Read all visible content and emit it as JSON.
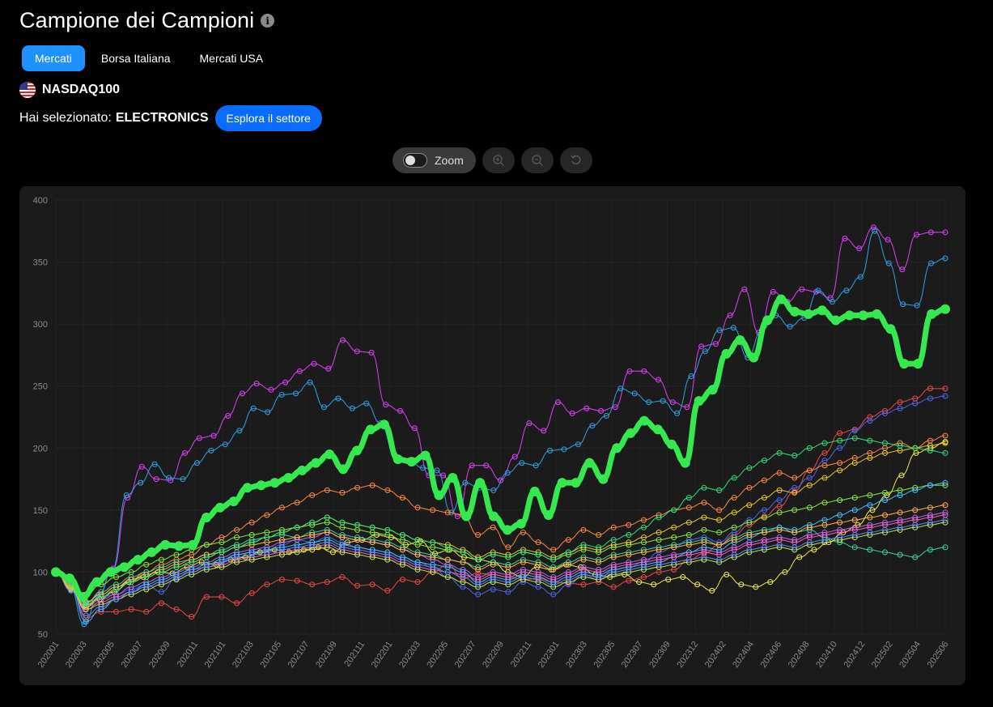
{
  "header": {
    "title": "Campione dei Campioni",
    "info_icon": "info-icon"
  },
  "tabs": [
    {
      "label": "Mercati",
      "active": true
    },
    {
      "label": "Borsa Italiana",
      "active": false
    },
    {
      "label": "Mercati USA",
      "active": false
    }
  ],
  "market": {
    "name": "NASDAQ100",
    "flag_icon": "us-flag-icon"
  },
  "selection": {
    "prefix": "Hai selezionato:",
    "sector": "ELECTRONICS",
    "explore_label": "Esplora il settore"
  },
  "controls": {
    "zoom_label": "Zoom",
    "zoom_enabled": false,
    "zoom_in_icon": "zoom-in-icon",
    "zoom_out_icon": "zoom-out-icon",
    "reset_icon": "reset-icon"
  },
  "colors": {
    "background": "#000000",
    "panel": "#1b1b1b",
    "accent": "#1e90ff",
    "highlight": "#35e84f"
  },
  "chart_data": {
    "type": "line",
    "ylim": [
      50,
      400
    ],
    "yticks": [
      50,
      100,
      150,
      200,
      250,
      300,
      350,
      400
    ],
    "xtick_labels": [
      "202001",
      "202003",
      "202005",
      "202007",
      "202009",
      "202011",
      "202101",
      "202103",
      "202105",
      "202107",
      "202109",
      "202111",
      "202201",
      "202203",
      "202205",
      "202207",
      "202209",
      "202211",
      "202301",
      "202303",
      "202305",
      "202307",
      "202309",
      "202312",
      "202402",
      "202404",
      "202406",
      "202408",
      "202410",
      "202412",
      "202502",
      "202504",
      "202506"
    ],
    "grid": true,
    "series": [
      {
        "color": "#e040fb",
        "highlight": false,
        "values": [
          100,
          90,
          70,
          82,
          103,
          160,
          185,
          175,
          174,
          196,
          208,
          210,
          226,
          244,
          252,
          247,
          253,
          262,
          268,
          264,
          287,
          278,
          277,
          235,
          230,
          216,
          178,
          178,
          145,
          186,
          186,
          174,
          193,
          220,
          214,
          237,
          228,
          232,
          230,
          233,
          262,
          262,
          255,
          237,
          233,
          282,
          284,
          307,
          328,
          293,
          326,
          318,
          328,
          326,
          321,
          369,
          361,
          378,
          368,
          344,
          372,
          374,
          374
        ]
      },
      {
        "color": "#2fa3e6",
        "highlight": false,
        "values": [
          100,
          88,
          58,
          80,
          102,
          162,
          172,
          187,
          176,
          175,
          188,
          198,
          203,
          214,
          232,
          229,
          243,
          244,
          253,
          233,
          240,
          232,
          236,
          220,
          195,
          190,
          184,
          182,
          148,
          172,
          168,
          166,
          180,
          188,
          186,
          198,
          199,
          203,
          218,
          226,
          248,
          244,
          237,
          238,
          228,
          258,
          278,
          295,
          297,
          273,
          295,
          307,
          298,
          305,
          327,
          318,
          327,
          338,
          375,
          349,
          316,
          315,
          349,
          353
        ]
      },
      {
        "color": "#35e84f",
        "highlight": true,
        "values": [
          100,
          95,
          80,
          92,
          100,
          104,
          110,
          116,
          122,
          121,
          122,
          144,
          152,
          157,
          168,
          170,
          172,
          176,
          182,
          188,
          195,
          183,
          198,
          215,
          219,
          191,
          189,
          194,
          162,
          176,
          145,
          172,
          145,
          134,
          139,
          165,
          146,
          172,
          172,
          188,
          175,
          200,
          212,
          222,
          215,
          203,
          188,
          238,
          247,
          276,
          287,
          273,
          303,
          320,
          310,
          308,
          311,
          303,
          307,
          307,
          308,
          296,
          268,
          268,
          308,
          312
        ]
      },
      {
        "color": "#f04848",
        "highlight": false,
        "values": [
          100,
          90,
          63,
          68,
          68,
          70,
          68,
          75,
          70,
          64,
          80,
          80,
          75,
          83,
          90,
          94,
          93,
          90,
          92,
          96,
          89,
          90,
          85,
          94,
          92,
          100,
          106,
          95,
          99,
          98,
          96,
          94,
          95,
          92,
          91,
          90,
          92,
          88,
          93,
          96,
          100,
          102,
          110,
          115,
          122,
          130,
          138,
          145,
          153,
          165,
          182,
          196,
          212,
          215,
          225,
          230,
          237,
          240,
          248,
          248
        ]
      },
      {
        "color": "#f2ee4a",
        "highlight": false,
        "values": [
          100,
          87,
          73,
          78,
          84,
          92,
          96,
          100,
          99,
          104,
          108,
          106,
          110,
          112,
          116,
          118,
          116,
          118,
          120,
          116,
          124,
          126,
          130,
          128,
          122,
          125,
          115,
          118,
          112,
          110,
          108,
          100,
          96,
          104,
          102,
          106,
          104,
          98,
          96,
          98,
          92,
          90,
          94,
          96,
          90,
          85,
          98,
          90,
          88,
          92,
          100,
          112,
          118,
          124,
          132,
          138,
          150,
          162,
          178,
          196,
          200,
          205
        ]
      },
      {
        "color": "#4c66f0",
        "highlight": false,
        "values": [
          100,
          86,
          74,
          80,
          82,
          86,
          90,
          84,
          95,
          102,
          104,
          108,
          114,
          116,
          118,
          122,
          126,
          124,
          128,
          124,
          120,
          118,
          116,
          112,
          108,
          104,
          96,
          88,
          82,
          86,
          84,
          92,
          88,
          82,
          90,
          98,
          94,
          102,
          104,
          108,
          116,
          120,
          126,
          128,
          124,
          132,
          142,
          150,
          158,
          168,
          176,
          190,
          200,
          214,
          222,
          228,
          232,
          236,
          240,
          242
        ]
      },
      {
        "color": "#ff8a3d",
        "highlight": false,
        "values": [
          100,
          89,
          76,
          82,
          88,
          94,
          100,
          106,
          110,
          114,
          122,
          128,
          134,
          140,
          146,
          152,
          156,
          162,
          166,
          164,
          168,
          170,
          166,
          160,
          152,
          150,
          148,
          146,
          130,
          136,
          120,
          132,
          124,
          118,
          126,
          134,
          130,
          136,
          138,
          142,
          146,
          150,
          152,
          156,
          150,
          160,
          168,
          174,
          180,
          176,
          182,
          186,
          188,
          192,
          196,
          200,
          204,
          200,
          206,
          210
        ]
      },
      {
        "color": "#38d8a0",
        "highlight": false,
        "values": [
          100,
          88,
          75,
          84,
          90,
          96,
          100,
          104,
          108,
          110,
          114,
          118,
          122,
          126,
          128,
          130,
          128,
          132,
          134,
          130,
          128,
          126,
          124,
          120,
          116,
          114,
          110,
          108,
          104,
          108,
          106,
          110,
          108,
          104,
          108,
          112,
          110,
          114,
          116,
          118,
          120,
          122,
          124,
          126,
          122,
          128,
          132,
          134,
          136,
          132,
          134,
          128,
          124,
          120,
          118,
          116,
          114,
          112,
          118,
          120
        ]
      },
      {
        "color": "#b06cf5",
        "highlight": false,
        "values": [
          100,
          86,
          72,
          78,
          82,
          88,
          92,
          96,
          100,
          104,
          108,
          112,
          116,
          118,
          120,
          124,
          126,
          128,
          132,
          128,
          126,
          124,
          122,
          118,
          114,
          110,
          106,
          102,
          96,
          100,
          98,
          102,
          100,
          96,
          100,
          104,
          102,
          106,
          108,
          110,
          112,
          114,
          116,
          118,
          116,
          120,
          124,
          126,
          128,
          126,
          130,
          132,
          134,
          136,
          138,
          140,
          142,
          144,
          146,
          148
        ]
      },
      {
        "color": "#8ce83a",
        "highlight": false,
        "values": [
          100,
          90,
          82,
          90,
          96,
          100,
          106,
          110,
          114,
          118,
          122,
          124,
          128,
          130,
          132,
          134,
          136,
          138,
          140,
          136,
          134,
          132,
          130,
          126,
          122,
          120,
          118,
          116,
          110,
          114,
          112,
          116,
          114,
          110,
          114,
          118,
          116,
          120,
          122,
          124,
          126,
          128,
          130,
          134,
          132,
          136,
          140,
          144,
          148,
          150,
          152,
          156,
          158,
          160,
          162,
          164,
          166,
          168,
          170,
          170
        ]
      },
      {
        "color": "#42c0ff",
        "highlight": false,
        "values": [
          100,
          87,
          60,
          70,
          78,
          84,
          90,
          94,
          98,
          102,
          106,
          110,
          114,
          116,
          118,
          120,
          122,
          124,
          126,
          122,
          120,
          118,
          116,
          112,
          108,
          106,
          104,
          100,
          92,
          96,
          94,
          98,
          96,
          92,
          96,
          100,
          98,
          102,
          104,
          106,
          108,
          112,
          116,
          120,
          118,
          124,
          128,
          132,
          136,
          134,
          138,
          142,
          146,
          150,
          154,
          158,
          162,
          166,
          170,
          172
        ]
      },
      {
        "color": "#ff5ac8",
        "highlight": false,
        "values": [
          100,
          88,
          70,
          76,
          80,
          84,
          88,
          92,
          96,
          100,
          104,
          106,
          110,
          112,
          114,
          116,
          118,
          120,
          122,
          118,
          116,
          114,
          112,
          108,
          104,
          102,
          100,
          98,
          94,
          98,
          96,
          100,
          98,
          94,
          98,
          102,
          100,
          104,
          106,
          108,
          110,
          112,
          114,
          116,
          114,
          118,
          122,
          124,
          126,
          124,
          128,
          130,
          132,
          134,
          136,
          138,
          140,
          142,
          144,
          146
        ]
      },
      {
        "color": "#c8e84a",
        "highlight": false,
        "values": [
          100,
          86,
          70,
          74,
          78,
          82,
          86,
          90,
          94,
          98,
          102,
          104,
          108,
          110,
          112,
          114,
          116,
          118,
          120,
          116,
          114,
          112,
          110,
          106,
          102,
          100,
          96,
          92,
          88,
          92,
          90,
          94,
          92,
          88,
          92,
          96,
          94,
          98,
          100,
          102,
          104,
          106,
          108,
          110,
          108,
          112,
          116,
          118,
          120,
          118,
          122,
          124,
          126,
          128,
          130,
          132,
          134,
          136,
          138,
          140
        ]
      },
      {
        "color": "#ffb347",
        "highlight": false,
        "values": [
          100,
          88,
          76,
          82,
          88,
          94,
          98,
          102,
          106,
          110,
          114,
          116,
          120,
          122,
          124,
          126,
          128,
          130,
          132,
          128,
          126,
          124,
          122,
          118,
          114,
          112,
          110,
          108,
          102,
          106,
          104,
          108,
          106,
          102,
          106,
          110,
          108,
          112,
          114,
          116,
          118,
          120,
          122,
          124,
          122,
          126,
          130,
          132,
          134,
          132,
          136,
          138,
          140,
          142,
          144,
          146,
          148,
          150,
          152,
          154
        ]
      },
      {
        "color": "#5a8cff",
        "highlight": false,
        "values": [
          100,
          85,
          65,
          72,
          78,
          84,
          88,
          92,
          96,
          100,
          104,
          108,
          112,
          114,
          116,
          118,
          120,
          122,
          124,
          120,
          118,
          116,
          114,
          110,
          106,
          104,
          100,
          96,
          90,
          94,
          92,
          96,
          94,
          90,
          94,
          98,
          96,
          100,
          102,
          104,
          106,
          108,
          110,
          112,
          110,
          114,
          118,
          120,
          122,
          120,
          124,
          126,
          128,
          130,
          132,
          134,
          136,
          138,
          140,
          142
        ]
      },
      {
        "color": "#e8c828",
        "highlight": false,
        "values": [
          100,
          87,
          72,
          80,
          86,
          92,
          96,
          100,
          104,
          108,
          112,
          116,
          120,
          124,
          128,
          132,
          136,
          140,
          144,
          140,
          138,
          136,
          134,
          130,
          126,
          124,
          122,
          118,
          112,
          116,
          114,
          118,
          116,
          112,
          116,
          120,
          118,
          122,
          124,
          128,
          132,
          136,
          140,
          144,
          142,
          148,
          154,
          160,
          166,
          164,
          170,
          176,
          182,
          188,
          192,
          196,
          198,
          200,
          202,
          204
        ]
      },
      {
        "color": "#2ee07a",
        "highlight": false,
        "values": [
          100,
          90,
          74,
          80,
          86,
          92,
          96,
          100,
          104,
          108,
          112,
          116,
          120,
          124,
          128,
          132,
          136,
          140,
          144,
          140,
          138,
          136,
          134,
          130,
          126,
          124,
          120,
          116,
          110,
          114,
          112,
          116,
          114,
          110,
          116,
          122,
          120,
          126,
          130,
          136,
          144,
          150,
          160,
          168,
          166,
          176,
          184,
          190,
          196,
          194,
          200,
          204,
          206,
          208,
          206,
          204,
          202,
          200,
          198,
          196
        ]
      }
    ]
  }
}
